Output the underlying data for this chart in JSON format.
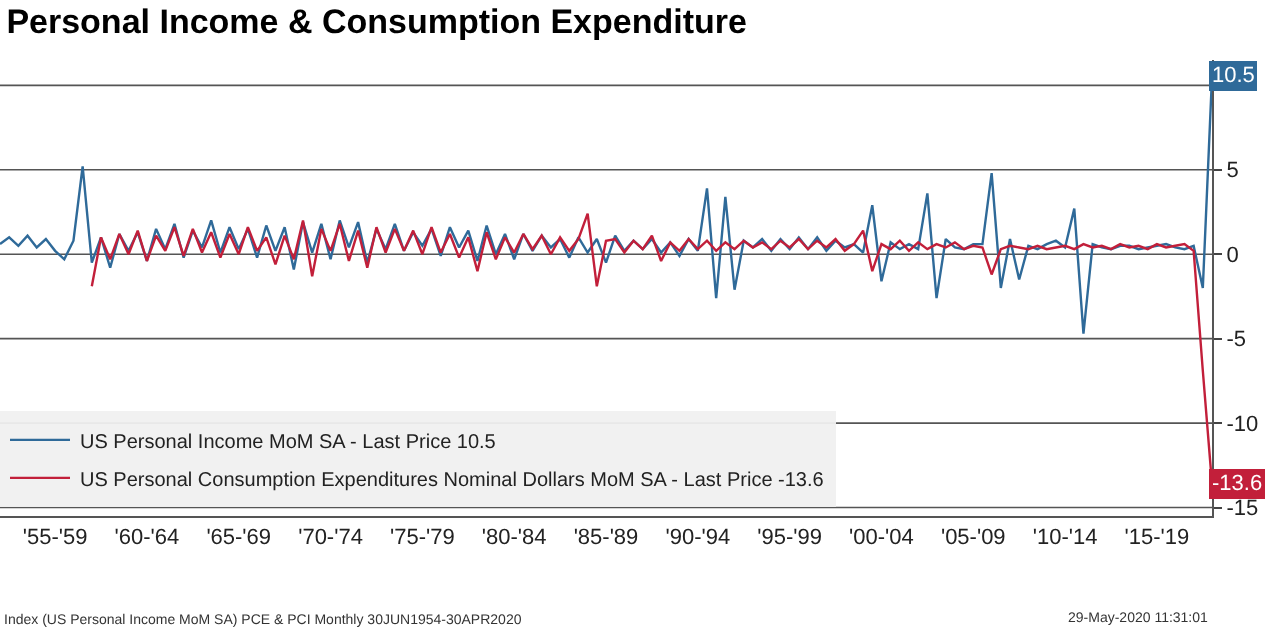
{
  "chart_data": {
    "type": "line",
    "title": "Personal Income & Consumption Expenditure",
    "annotations": [
      {
        "text": "10.5",
        "y": 10.5
      },
      {
        "text": "-13.6",
        "y": -13.6
      },
      "Index (US Personal Income MoM SA) PCE & PCI Monthly 30JUN1954-30APR2020",
      "29-May-2020 11:31:01"
    ],
    "categories": [
      null,
      null,
      null,
      null,
      null,
      null,
      "'55-'59",
      null,
      null,
      null,
      null,
      null,
      null,
      null,
      null,
      null,
      "'60-'64",
      null,
      null,
      null,
      null,
      null,
      null,
      null,
      null,
      null,
      "'65-'69",
      null,
      null,
      null,
      null,
      null,
      null,
      null,
      null,
      null,
      "'70-'74",
      null,
      null,
      null,
      null,
      null,
      null,
      null,
      null,
      null,
      "'75-'79",
      null,
      null,
      null,
      null,
      null,
      null,
      null,
      null,
      null,
      "'80-'84",
      null,
      null,
      null,
      null,
      null,
      null,
      null,
      null,
      null,
      "'85-'89",
      null,
      null,
      null,
      null,
      null,
      null,
      null,
      null,
      null,
      "'90-'94",
      null,
      null,
      null,
      null,
      null,
      null,
      null,
      null,
      null,
      "'95-'99",
      null,
      null,
      null,
      null,
      null,
      null,
      null,
      null,
      null,
      "'00-'04",
      null,
      null,
      null,
      null,
      null,
      null,
      null,
      null,
      null,
      "'05-'09",
      null,
      null,
      null,
      null,
      null,
      null,
      null,
      null,
      null,
      "'10-'14",
      null,
      null,
      null,
      null,
      null,
      null,
      null,
      null,
      null,
      "'15-'19",
      null,
      null,
      null,
      null,
      null,
      null
    ],
    "series": [
      {
        "name": "US Personal Income MoM SA - Last Price 10.5",
        "color": "#2f6a99",
        "values": [
          0.6,
          1.0,
          0.5,
          1.1,
          0.4,
          0.9,
          0.2,
          -0.3,
          0.8,
          5.2,
          -0.5,
          1.0,
          -0.8,
          1.2,
          0.2,
          1.3,
          -0.4,
          1.5,
          0.3,
          1.8,
          -0.2,
          1.4,
          0.4,
          2.0,
          0.1,
          1.6,
          0.3,
          1.5,
          -0.2,
          1.7,
          0.2,
          1.6,
          -0.9,
          1.9,
          0.1,
          1.8,
          -0.3,
          2.0,
          0.4,
          1.9,
          -0.5,
          1.5,
          0.3,
          1.8,
          0.2,
          1.3,
          0.5,
          1.5,
          -0.1,
          1.6,
          0.4,
          1.4,
          -0.4,
          1.7,
          0.0,
          1.2,
          -0.3,
          1.2,
          0.2,
          1.1,
          0.4,
          0.9,
          -0.2,
          1.0,
          0.1,
          0.9,
          -0.5,
          1.1,
          0.2,
          0.8,
          0.3,
          0.9,
          0.1,
          0.7,
          -0.1,
          0.9,
          0.2,
          3.9,
          -2.6,
          3.4,
          -2.1,
          0.8,
          0.4,
          0.9,
          0.2,
          0.9,
          0.3,
          1.0,
          0.3,
          1.0,
          0.2,
          0.8,
          0.4,
          0.6,
          0.1,
          2.9,
          -1.6,
          0.7,
          0.3,
          0.6,
          0.3,
          3.6,
          -2.6,
          0.9,
          0.4,
          0.3,
          0.6,
          0.6,
          4.8,
          -2.0,
          0.9,
          -1.5,
          0.5,
          0.3,
          0.6,
          0.8,
          0.4,
          2.7,
          -4.7,
          0.6,
          0.4,
          0.3,
          0.5,
          0.5,
          0.3,
          0.4,
          0.5,
          0.6,
          0.4,
          0.3,
          0.5,
          -2.0,
          10.5
        ]
      },
      {
        "name": "US Personal Consumption Expenditures Nominal Dollars MoM SA - Last Price -13.6",
        "color": "#c21f3a",
        "values": [
          null,
          null,
          null,
          null,
          null,
          null,
          null,
          null,
          null,
          null,
          -1.9,
          1.0,
          -0.3,
          1.2,
          0.0,
          1.4,
          -0.4,
          1.1,
          0.2,
          1.6,
          -0.1,
          1.5,
          0.1,
          1.3,
          -0.2,
          1.2,
          0.0,
          1.6,
          0.2,
          1.0,
          -0.6,
          1.1,
          -0.3,
          2.0,
          -1.3,
          1.5,
          0.2,
          1.8,
          -0.4,
          1.4,
          -0.8,
          1.6,
          0.1,
          1.5,
          0.2,
          1.4,
          0.0,
          1.6,
          0.1,
          1.2,
          -0.2,
          1.0,
          -1.0,
          1.3,
          -0.3,
          1.0,
          0.1,
          1.2,
          0.3,
          1.1,
          0.0,
          1.0,
          0.2,
          0.9,
          2.4,
          -1.9,
          0.8,
          0.9,
          0.1,
          0.8,
          0.3,
          1.1,
          -0.4,
          0.7,
          0.2,
          0.9,
          0.3,
          0.8,
          0.2,
          0.7,
          0.3,
          0.8,
          0.4,
          0.7,
          0.3,
          0.8,
          0.4,
          0.9,
          0.3,
          0.8,
          0.4,
          0.9,
          0.2,
          0.6,
          1.4,
          -1.0,
          0.6,
          0.3,
          0.8,
          0.2,
          0.7,
          0.3,
          0.6,
          0.4,
          0.7,
          0.3,
          0.5,
          0.4,
          -1.2,
          0.3,
          0.5,
          0.4,
          0.3,
          0.5,
          0.3,
          0.4,
          0.5,
          0.3,
          0.6,
          0.4,
          0.5,
          0.3,
          0.6,
          0.4,
          0.5,
          0.3,
          0.6,
          0.4,
          0.5,
          0.6,
          0.2,
          -6.9,
          -13.6
        ]
      }
    ],
    "ylim": [
      -15.5,
      11.5
    ],
    "yticks": [
      {
        "value": 10,
        "label": null
      },
      5,
      0,
      -5,
      -10,
      -15
    ],
    "grid": "y",
    "legend": "bottom",
    "line_style": "solid"
  }
}
